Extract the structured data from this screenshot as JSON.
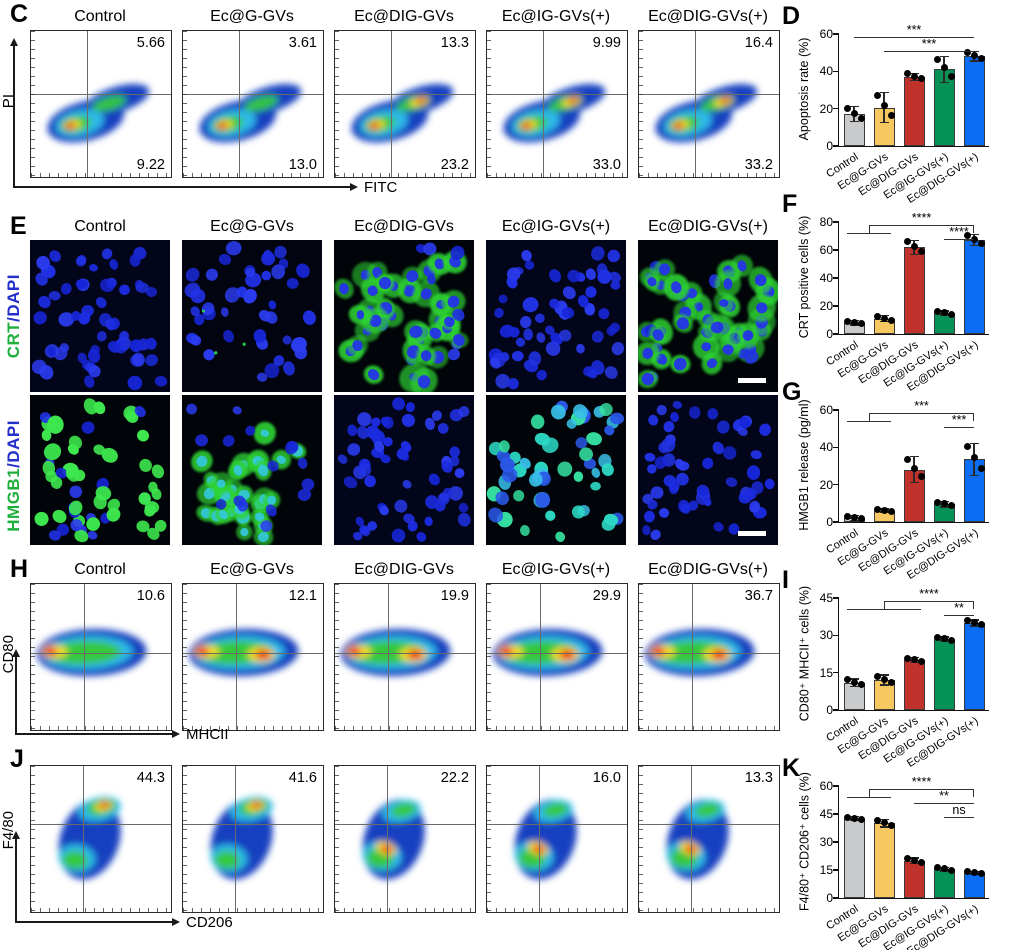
{
  "colors": {
    "bars": [
      "#C9CACC",
      "#F7C85F",
      "#C0322B",
      "#069257",
      "#0B6CF4"
    ],
    "bar_border": "#3a3a3a",
    "axis": "#1a1a1a",
    "dapi_blue": "#2233E8",
    "stain_green": "#2FD435",
    "label_green": "#1FAF3C",
    "label_blue": "#2430CC",
    "density_scale": [
      "#1840C0",
      "#2FB9E8",
      "#35C83C",
      "#F0E028",
      "#F01808"
    ]
  },
  "groups": [
    "Control",
    "Ec@G-GVs",
    "Ec@DIG-GVs",
    "Ec@IG-GVs(+)",
    "Ec@DIG-GVs(+)"
  ],
  "flow_panels": [
    {
      "letter": "C",
      "x_axis": "FITC",
      "y_axis": "PI",
      "show_titles": true,
      "variant": "diag",
      "quad": {
        "v": 40,
        "h": 43
      },
      "plots": [
        {
          "title": "Control",
          "top_right": "5.66",
          "bottom_right": "9.22",
          "hot": 0
        },
        {
          "title": "Ec@G-GVs",
          "top_right": "3.61",
          "bottom_right": "13.0",
          "hot": 0
        },
        {
          "title": "Ec@DIG-GVs",
          "top_right": "13.3",
          "bottom_right": "23.2",
          "hot": 1
        },
        {
          "title": "Ec@IG-GVs(+)",
          "top_right": "9.99",
          "bottom_right": "33.0",
          "hot": 1
        },
        {
          "title": "Ec@DIG-GVs(+)",
          "top_right": "16.4",
          "bottom_right": "33.2",
          "hot": 1
        }
      ]
    },
    {
      "letter": "H",
      "x_axis": "MHCII",
      "y_axis": "CD80",
      "show_titles": true,
      "variant": "band",
      "quad": {
        "v": 38,
        "h": 47
      },
      "plots": [
        {
          "title": "Control",
          "top_right": "10.6",
          "hot": 0
        },
        {
          "title": "Ec@G-GVs",
          "top_right": "12.1",
          "hot": 1
        },
        {
          "title": "Ec@DIG-GVs",
          "top_right": "19.9",
          "hot": 1
        },
        {
          "title": "Ec@IG-GVs(+)",
          "top_right": "29.9",
          "hot": 1
        },
        {
          "title": "Ec@DIG-GVs(+)",
          "top_right": "36.7",
          "hot": 1
        }
      ]
    },
    {
      "letter": "J",
      "x_axis": "CD206",
      "y_axis": "F4/80",
      "show_titles": false,
      "variant": "twin",
      "quad": {
        "v": 37,
        "h": 40
      },
      "plots": [
        {
          "title": "",
          "top_right": "44.3",
          "hot": 0
        },
        {
          "title": "",
          "top_right": "41.6",
          "hot": 0
        },
        {
          "title": "",
          "top_right": "22.2",
          "hot": 1
        },
        {
          "title": "",
          "top_right": "16.0",
          "hot": 1
        },
        {
          "title": "",
          "top_right": "13.3",
          "hot": 1
        }
      ]
    }
  ],
  "microscopy": {
    "letter": "E",
    "titles": [
      "Control",
      "Ec@G-GVs",
      "Ec@DIG-GVs",
      "Ec@IG-GVs(+)",
      "Ec@DIG-GVs(+)"
    ],
    "rows": [
      {
        "label_main": "CRT",
        "label_rest": "/DAPI",
        "cells": [
          {
            "variant": "blue",
            "scalebar": false
          },
          {
            "variant": "blue-sparse",
            "scalebar": false
          },
          {
            "variant": "green-cyto",
            "scalebar": false
          },
          {
            "variant": "blue",
            "scalebar": false
          },
          {
            "variant": "green-cyto",
            "scalebar": true
          }
        ]
      },
      {
        "label_main": "HMGB1",
        "label_rest": "/DAPI",
        "cells": [
          {
            "variant": "green-nuclei",
            "scalebar": false
          },
          {
            "variant": "green-clusters",
            "scalebar": false
          },
          {
            "variant": "blue",
            "scalebar": false
          },
          {
            "variant": "cyan",
            "scalebar": false
          },
          {
            "variant": "blue",
            "scalebar": true
          }
        ]
      }
    ]
  },
  "chart_data": [
    {
      "type": "bar",
      "letter": "D",
      "ylabel": "Apoptosis rate (%)",
      "ylim": [
        0,
        60
      ],
      "yticks": [
        0,
        20,
        40,
        60
      ],
      "grid": false,
      "legend": "none",
      "categories": [
        "Control",
        "Ec@G-GVs",
        "Ec@DIG-GVs",
        "Ec@IG-GVs(+)",
        "Ec@DIG-GVs(+)"
      ],
      "values": [
        17,
        20.5,
        37,
        41,
        48
      ],
      "errors": [
        4,
        8,
        2,
        7,
        2.5
      ],
      "sig": [
        {
          "x1": 0,
          "x2": 4,
          "label": "***",
          "tick": false
        },
        {
          "x1": 1,
          "x2": 4,
          "label": "***",
          "tick": false
        }
      ]
    },
    {
      "type": "bar",
      "letter": "F",
      "ylabel": "CRT positive cells (%)",
      "ylim": [
        0,
        80
      ],
      "yticks": [
        0,
        20,
        40,
        60,
        80
      ],
      "grid": false,
      "legend": "none",
      "categories": [
        "Control",
        "Ec@G-GVs",
        "Ec@DIG-GVs",
        "Ec@IG-GVs(+)",
        "Ec@DIG-GVs(+)"
      ],
      "values": [
        8,
        11,
        62,
        15,
        67
      ],
      "errors": [
        1.5,
        2,
        5,
        1.5,
        4
      ],
      "sig": [
        {
          "x1": 0.5,
          "x2": 4,
          "label": "****",
          "fork": [
            0,
            1
          ],
          "tick": true
        },
        {
          "x1": 3,
          "x2": 4,
          "label": "****",
          "tick": false
        }
      ]
    },
    {
      "type": "bar",
      "letter": "G",
      "ylabel": "HMGB1 release (pg/ml)",
      "ylim": [
        0,
        60
      ],
      "yticks": [
        0,
        20,
        40,
        60
      ],
      "grid": false,
      "legend": "none",
      "categories": [
        "Control",
        "Ec@G-GVs",
        "Ec@DIG-GVs",
        "Ec@IG-GVs(+)",
        "Ec@DIG-GVs(+)"
      ],
      "values": [
        2,
        6,
        28,
        9.5,
        33.5
      ],
      "errors": [
        1.5,
        1,
        7,
        1.5,
        8.5
      ],
      "sig": [
        {
          "x1": 0.5,
          "x2": 4,
          "label": "***",
          "fork": [
            0,
            1
          ],
          "tick": true
        },
        {
          "x1": 3,
          "x2": 4,
          "label": "***",
          "tick": false
        }
      ]
    },
    {
      "type": "bar",
      "letter": "I",
      "ylabel": "CD80⁺ MHCII⁺ cells (%)",
      "ylim": [
        0,
        45
      ],
      "yticks": [
        0,
        15,
        30,
        45
      ],
      "grid": false,
      "legend": "none",
      "categories": [
        "Control",
        "Ec@G-GVs",
        "Ec@DIG-GVs",
        "Ec@IG-GVs(+)",
        "Ec@DIG-GVs(+)"
      ],
      "values": [
        11,
        12,
        20,
        28.5,
        35
      ],
      "errors": [
        1.5,
        2,
        1,
        0.8,
        1.2
      ],
      "sig": [
        {
          "x1": 1,
          "x2": 4,
          "label": "****",
          "fork": [
            0,
            2
          ],
          "tick": true
        },
        {
          "x1": 3,
          "x2": 4,
          "label": "**",
          "tick": false
        }
      ]
    },
    {
      "type": "bar",
      "letter": "K",
      "ylabel": "F4/80⁺ CD206⁺ cells (%)",
      "ylim": [
        0,
        60
      ],
      "yticks": [
        0,
        15,
        30,
        45,
        60
      ],
      "grid": false,
      "legend": "none",
      "categories": [
        "Control",
        "Ec@G-GVs",
        "Ec@DIG-GVs",
        "Ec@IG-GVs(+)",
        "Ec@DIG-GVs(+)"
      ],
      "values": [
        42.5,
        40,
        20,
        15.5,
        13.5
      ],
      "errors": [
        1,
        2,
        1.5,
        1,
        0.8
      ],
      "sig": [
        {
          "x1": 0.5,
          "x2": 4,
          "label": "****",
          "fork": [
            0,
            1
          ],
          "tick": true
        },
        {
          "x1": 2,
          "x2": 4,
          "label": "**",
          "tick": false
        },
        {
          "x1": 3,
          "x2": 4,
          "label": "ns",
          "tick": false
        }
      ]
    }
  ]
}
